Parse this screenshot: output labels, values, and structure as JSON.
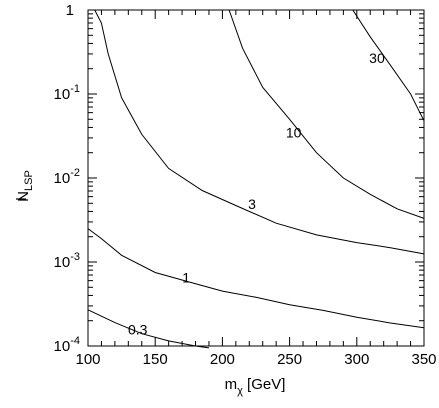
{
  "chart_data": {
    "type": "line",
    "xlabel_main": "m",
    "xlabel_sub": "χ",
    "xlabel_unit": " [GeV]",
    "ylabel_main": "N",
    "ylabel_sub": "LSP",
    "xlim": [
      100,
      350
    ],
    "ylim": [
      0.0001,
      1
    ],
    "yscale": "log",
    "grid": false,
    "legend": "none",
    "x_ticks": [
      {
        "value": 100,
        "label": "100"
      },
      {
        "value": 150,
        "label": "150"
      },
      {
        "value": 200,
        "label": "200"
      },
      {
        "value": 250,
        "label": "250"
      },
      {
        "value": 300,
        "label": "300"
      },
      {
        "value": 350,
        "label": "350"
      }
    ],
    "y_ticks": [
      {
        "value": 0.0001,
        "base": "10",
        "exp": "-4"
      },
      {
        "value": 0.001,
        "base": "10",
        "exp": "-3"
      },
      {
        "value": 0.01,
        "base": "10",
        "exp": "-2"
      },
      {
        "value": 0.1,
        "base": "10",
        "exp": "-1"
      },
      {
        "value": 1,
        "base": "1",
        "exp": ""
      }
    ],
    "series": [
      {
        "label": "0.3",
        "label_at": [
          137,
          0.000157
        ],
        "points": [
          [
            100,
            0.00027
          ],
          [
            120,
            0.00019
          ],
          [
            140,
            0.00014
          ],
          [
            160,
            0.000115
          ],
          [
            180,
            0.0001
          ],
          [
            190,
            9.5e-05
          ]
        ]
      },
      {
        "label": "1",
        "label_at": [
          173,
          0.00065
        ],
        "points": [
          [
            100,
            0.0025
          ],
          [
            110,
            0.0019
          ],
          [
            125,
            0.0012
          ],
          [
            150,
            0.00075
          ],
          [
            175,
            0.00058
          ],
          [
            200,
            0.00045
          ],
          [
            225,
            0.00038
          ],
          [
            250,
            0.00031
          ],
          [
            275,
            0.000265
          ],
          [
            300,
            0.00022
          ],
          [
            325,
            0.000188
          ],
          [
            350,
            0.000165
          ]
        ]
      },
      {
        "label": "3",
        "label_at": [
          222,
          0.0049
        ],
        "points": [
          [
            105,
            1.0
          ],
          [
            110,
            0.7
          ],
          [
            115,
            0.3
          ],
          [
            125,
            0.09
          ],
          [
            140,
            0.033
          ],
          [
            160,
            0.013
          ],
          [
            185,
            0.0071
          ],
          [
            210,
            0.0047
          ],
          [
            240,
            0.0029
          ],
          [
            270,
            0.0021
          ],
          [
            300,
            0.0017
          ],
          [
            325,
            0.00148
          ],
          [
            350,
            0.00125
          ]
        ]
      },
      {
        "label": "10",
        "label_at": [
          253,
          0.035
        ],
        "points": [
          [
            205,
            1.0
          ],
          [
            215,
            0.35
          ],
          [
            230,
            0.12
          ],
          [
            250,
            0.05
          ],
          [
            270,
            0.02
          ],
          [
            290,
            0.01
          ],
          [
            310,
            0.0064
          ],
          [
            330,
            0.0043
          ],
          [
            350,
            0.0033
          ]
        ]
      },
      {
        "label": "30",
        "label_at": [
          315,
          0.27
        ],
        "points": [
          [
            297,
            1.0
          ],
          [
            310,
            0.48
          ],
          [
            325,
            0.22
          ],
          [
            340,
            0.1
          ],
          [
            350,
            0.048
          ]
        ]
      }
    ]
  }
}
